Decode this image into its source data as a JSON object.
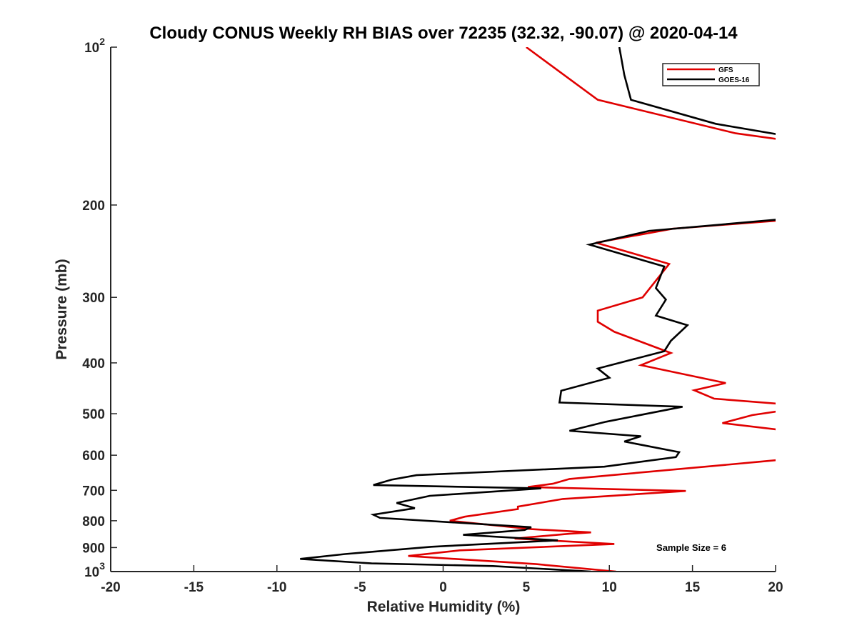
{
  "chart_data": {
    "type": "line",
    "title": "Cloudy CONUS Weekly RH BIAS over 72235 (32.32, -90.07) @ 2020-04-14",
    "xlabel": "Relative Humidity (%)",
    "ylabel": "Pressure (mb)",
    "xlim": [
      -20,
      20
    ],
    "ylim": [
      100,
      1000
    ],
    "yscale": "log",
    "y_reversed": true,
    "x_ticks": [
      "-20",
      "-15",
      "-10",
      "-5",
      "0",
      "5",
      "10",
      "15",
      "20"
    ],
    "y_ticks": [
      {
        "value": 100,
        "base": "10",
        "exp": "2"
      },
      {
        "value": 200,
        "base": "200",
        "exp": ""
      },
      {
        "value": 300,
        "base": "300",
        "exp": ""
      },
      {
        "value": 400,
        "base": "400",
        "exp": ""
      },
      {
        "value": 500,
        "base": "500",
        "exp": ""
      },
      {
        "value": 600,
        "base": "600",
        "exp": ""
      },
      {
        "value": 700,
        "base": "700",
        "exp": ""
      },
      {
        "value": 800,
        "base": "800",
        "exp": ""
      },
      {
        "value": 900,
        "base": "900",
        "exp": ""
      },
      {
        "value": 1000,
        "base": "10",
        "exp": "3"
      }
    ],
    "legend_position": "top-right",
    "annotation": "Sample Size = 6",
    "series": [
      {
        "name": "GFS",
        "color": "#e00000",
        "points": [
          [
            5.0,
            100
          ],
          [
            9.3,
            126
          ],
          [
            17.6,
            146
          ],
          [
            20.3,
            150
          ],
          [
            20.3,
            214
          ],
          [
            13.8,
            222
          ],
          [
            9.2,
            236
          ],
          [
            13.6,
            259
          ],
          [
            12.0,
            300
          ],
          [
            9.3,
            318
          ],
          [
            9.3,
            334
          ],
          [
            10.3,
            349
          ],
          [
            13.7,
            383
          ],
          [
            11.9,
            404
          ],
          [
            17.0,
            437
          ],
          [
            15.1,
            451
          ],
          [
            16.3,
            468
          ],
          [
            20.3,
            479
          ],
          [
            20.3,
            494
          ],
          [
            18.6,
            503
          ],
          [
            16.8,
            521
          ],
          [
            20.3,
            537
          ],
          [
            20.3,
            612
          ],
          [
            18.9,
            618
          ],
          [
            7.6,
            666
          ],
          [
            6.6,
            680
          ],
          [
            5.1,
            690
          ],
          [
            14.6,
            702
          ],
          [
            7.2,
            727
          ],
          [
            4.5,
            752
          ],
          [
            4.5,
            760
          ],
          [
            1.3,
            786
          ],
          [
            0.4,
            800
          ],
          [
            5.3,
            830
          ],
          [
            8.9,
            842
          ],
          [
            7.6,
            847
          ],
          [
            4.3,
            865
          ],
          [
            10.3,
            886
          ],
          [
            1.0,
            911
          ],
          [
            -2.1,
            934
          ],
          [
            5.6,
            968
          ],
          [
            10.4,
            1000
          ]
        ]
      },
      {
        "name": "GOES-16",
        "color": "#000000",
        "points": [
          [
            10.6,
            100
          ],
          [
            10.9,
            113
          ],
          [
            11.3,
            126
          ],
          [
            16.4,
            140
          ],
          [
            20.3,
            147
          ],
          [
            20.3,
            213
          ],
          [
            12.4,
            224
          ],
          [
            8.8,
            238
          ],
          [
            13.3,
            262
          ],
          [
            12.8,
            288
          ],
          [
            13.4,
            303
          ],
          [
            12.8,
            325
          ],
          [
            14.7,
            339
          ],
          [
            13.7,
            363
          ],
          [
            13.3,
            380
          ],
          [
            9.3,
            410
          ],
          [
            10.0,
            427
          ],
          [
            7.1,
            452
          ],
          [
            7.0,
            476
          ],
          [
            14.4,
            485
          ],
          [
            9.8,
            518
          ],
          [
            7.6,
            539
          ],
          [
            11.9,
            552
          ],
          [
            10.9,
            565
          ],
          [
            14.2,
            592
          ],
          [
            14.0,
            605
          ],
          [
            9.7,
            631
          ],
          [
            -1.6,
            655
          ],
          [
            -3.1,
            668
          ],
          [
            -4.2,
            684
          ],
          [
            5.9,
            694
          ],
          [
            -0.8,
            717
          ],
          [
            -2.8,
            740
          ],
          [
            -1.7,
            757
          ],
          [
            -4.2,
            779
          ],
          [
            -3.8,
            790
          ],
          [
            5.3,
            823
          ],
          [
            4.9,
            833
          ],
          [
            1.2,
            851
          ],
          [
            6.9,
            872
          ],
          [
            -0.7,
            897
          ],
          [
            -5.9,
            926
          ],
          [
            -8.6,
            946
          ],
          [
            -4.3,
            965
          ],
          [
            3.0,
            976
          ],
          [
            8.9,
            1000
          ]
        ]
      }
    ]
  }
}
